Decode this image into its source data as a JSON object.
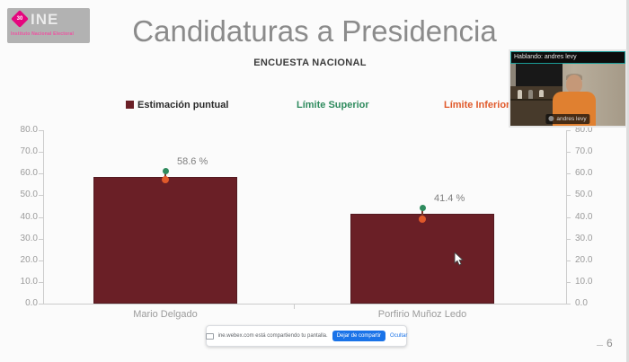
{
  "window": {
    "page_number": "6"
  },
  "logo": {
    "badge": "30",
    "acronym": "INE",
    "caption": "Instituto Nacional Electoral"
  },
  "slide": {
    "title": "Candidaturas a Presidencia",
    "subtitle": "ENCUESTA NACIONAL"
  },
  "legend": {
    "items": [
      {
        "label": "Estimación puntual",
        "color": "#6a1f26",
        "marker": "square"
      },
      {
        "label": "Límite Superior",
        "color": "#2f8b5e",
        "marker": "none"
      },
      {
        "label": "Límite Inferior",
        "color": "#e0592a",
        "marker": "none"
      }
    ]
  },
  "chart_data": {
    "type": "bar",
    "title": "Candidaturas a Presidencia",
    "subtitle": "ENCUESTA NACIONAL",
    "categories": [
      "Mario Delgado",
      "Porfirio Muñoz Ledo"
    ],
    "series": [
      {
        "name": "Estimación puntual",
        "values": [
          58.6,
          41.4
        ],
        "data_labels": [
          "58.6 %",
          "41.4 %"
        ],
        "color": "#6a1f26"
      },
      {
        "name": "Límite Superior",
        "values": [
          61,
          44
        ],
        "color": "#2f8b5e",
        "note": "estimated from marker position, not labeled"
      },
      {
        "name": "Límite Inferior",
        "values": [
          57,
          39
        ],
        "color": "#e0592a",
        "note": "estimated from marker position, not labeled"
      }
    ],
    "xlabel": "",
    "ylabel": "",
    "ylim": [
      0,
      80
    ],
    "ytick_labels": [
      "0.0",
      "10.0",
      "20.0",
      "30.0",
      "40.0",
      "50.0",
      "60.0",
      "70.0",
      "80.0"
    ],
    "dual_y_axis": true,
    "grid": false,
    "legend_position": "top"
  },
  "webcam": {
    "speaking_label": "Hablando: andres levy",
    "name_tag": "andres levy"
  },
  "share_bar": {
    "message": "ine.webex.com está compartiendo tu pantalla.",
    "stop_button": "Dejar de compartir",
    "hide_link": "Ocultar"
  }
}
